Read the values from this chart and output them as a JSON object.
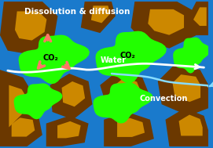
{
  "bg_color": "#1a7acc",
  "title": "Dissolution & diffusion",
  "title_color": "white",
  "title_fontsize": 7.5,
  "water_label": "Water",
  "water_color": "white",
  "co2_label": "CO₂",
  "co2_color": "#22ff00",
  "convection_label": "Convection",
  "convection_color": "white",
  "arrow_color": "#ff7766",
  "rock_inner": "#cc8800",
  "rock_outer": "#6b3800",
  "figsize": [
    2.71,
    1.89
  ],
  "dpi": 100
}
